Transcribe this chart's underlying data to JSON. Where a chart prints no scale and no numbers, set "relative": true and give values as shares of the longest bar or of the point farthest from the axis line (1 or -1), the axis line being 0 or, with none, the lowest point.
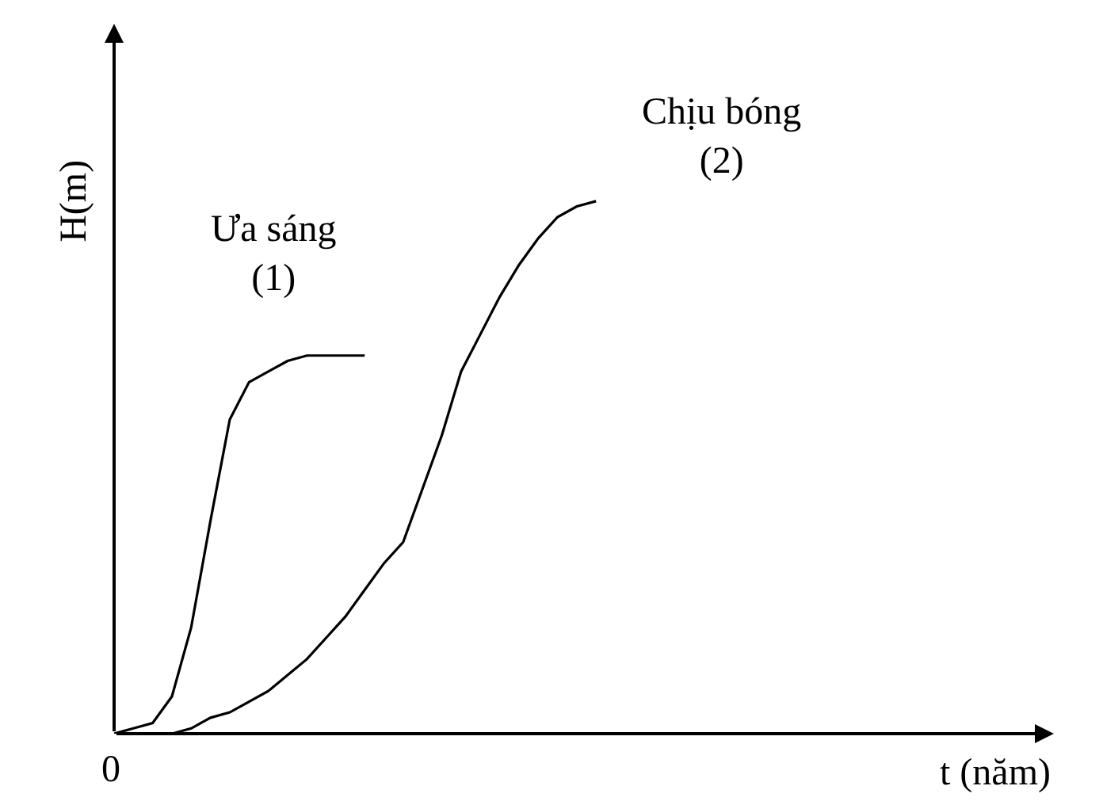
{
  "chart_data": {
    "type": "line",
    "relative": true,
    "ylabel": "H(m)",
    "annotations": [
      "0",
      "t (năm)"
    ],
    "legend": false,
    "marker": "none",
    "line_style": "solid",
    "categories": [
      null,
      null,
      null,
      null,
      null,
      null,
      null,
      null,
      null,
      null,
      null,
      null,
      null,
      null,
      null,
      null,
      null,
      null,
      null,
      null,
      null,
      null,
      null,
      null,
      null,
      null
    ],
    "series": [
      {
        "name": "Ưa sáng\n(1)",
        "color": "#000000",
        "values": [
          0,
          0.01,
          0.02,
          0.07,
          0.2,
          0.4,
          0.59,
          0.66,
          0.68,
          0.7,
          0.71,
          0.71,
          0.71,
          0.71,
          null,
          null,
          null,
          null,
          null,
          null,
          null,
          null,
          null,
          null,
          null,
          null
        ]
      },
      {
        "name": "Chịu bóng\n(2)",
        "color": "#000000",
        "values": [
          null,
          null,
          null,
          0,
          0.01,
          0.03,
          0.04,
          0.06,
          0.08,
          0.11,
          0.14,
          0.18,
          0.22,
          0.27,
          0.32,
          0.36,
          0.46,
          0.56,
          0.68,
          0.75,
          0.82,
          0.88,
          0.93,
          0.97,
          0.99,
          1.0
        ]
      }
    ]
  }
}
